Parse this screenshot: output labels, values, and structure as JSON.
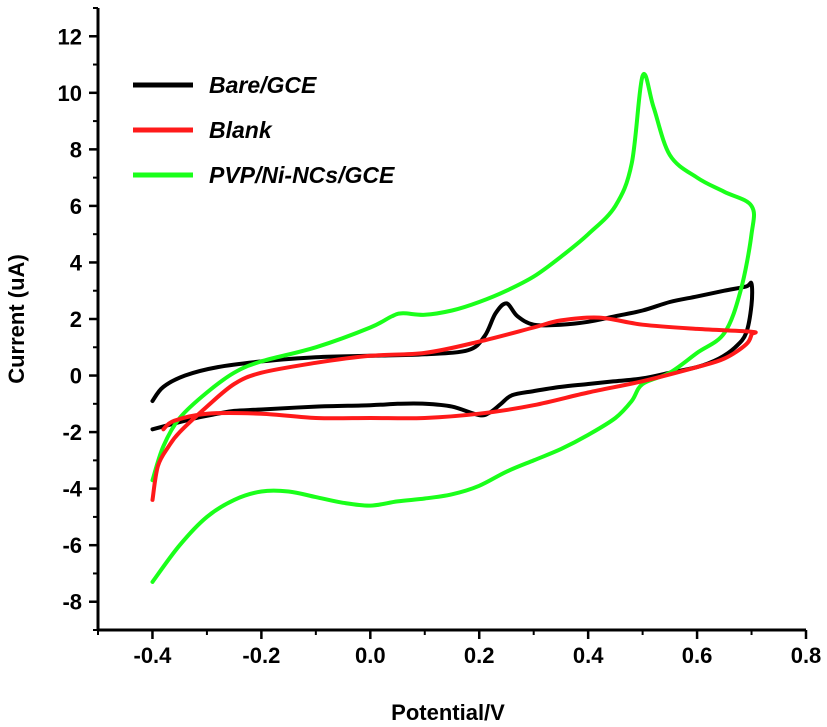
{
  "chart_data": {
    "type": "line",
    "title": "",
    "xlabel": "Potential/V",
    "ylabel": "Current (uA)",
    "xlim": [
      -0.5,
      0.8
    ],
    "ylim": [
      -9,
      13
    ],
    "xticks": [
      -0.4,
      -0.2,
      0.0,
      0.2,
      0.4,
      0.6,
      0.8
    ],
    "xtick_labels": [
      "-0.4",
      "-0.2",
      "0.0",
      "0.2",
      "0.4",
      "0.6",
      "0.8"
    ],
    "yticks": [
      -8,
      -6,
      -4,
      -2,
      0,
      2,
      4,
      6,
      8,
      10,
      12
    ],
    "ytick_labels": [
      "-8",
      "-6",
      "-4",
      "-2",
      "0",
      "2",
      "4",
      "6",
      "8",
      "10",
      "12"
    ],
    "grid": false,
    "legend_position": "top-left",
    "series": [
      {
        "name": "Bare/GCE",
        "color": "#000000",
        "x": [
          -0.4,
          -0.38,
          -0.34,
          -0.28,
          -0.2,
          -0.1,
          0.0,
          0.1,
          0.18,
          0.21,
          0.23,
          0.25,
          0.27,
          0.3,
          0.35,
          0.4,
          0.45,
          0.5,
          0.55,
          0.6,
          0.65,
          0.69,
          0.7,
          0.7,
          0.69,
          0.67,
          0.64,
          0.6,
          0.55,
          0.5,
          0.45,
          0.4,
          0.35,
          0.3,
          0.26,
          0.24,
          0.22,
          0.2,
          0.15,
          0.1,
          0.05,
          0.0,
          -0.1,
          -0.2,
          -0.25,
          -0.28,
          -0.32,
          -0.36,
          -0.4
        ],
        "y": [
          -0.9,
          -0.4,
          0.0,
          0.3,
          0.5,
          0.65,
          0.7,
          0.75,
          0.9,
          1.4,
          2.2,
          2.55,
          2.1,
          1.8,
          1.8,
          1.9,
          2.1,
          2.3,
          2.6,
          2.8,
          3.0,
          3.15,
          3.25,
          2.5,
          1.5,
          1.0,
          0.6,
          0.3,
          0.1,
          -0.1,
          -0.2,
          -0.3,
          -0.4,
          -0.55,
          -0.7,
          -1.0,
          -1.3,
          -1.4,
          -1.1,
          -1.0,
          -1.0,
          -1.05,
          -1.1,
          -1.2,
          -1.25,
          -1.35,
          -1.5,
          -1.7,
          -1.9
        ]
      },
      {
        "name": "Blank",
        "color": "#ff1a1a",
        "x": [
          -0.4,
          -0.39,
          -0.37,
          -0.35,
          -0.3,
          -0.25,
          -0.2,
          -0.1,
          0.0,
          0.1,
          0.2,
          0.3,
          0.35,
          0.42,
          0.5,
          0.6,
          0.7,
          0.7,
          0.69,
          0.65,
          0.6,
          0.5,
          0.4,
          0.3,
          0.2,
          0.1,
          0.0,
          -0.1,
          -0.2,
          -0.3,
          -0.36,
          -0.38
        ],
        "y": [
          -4.4,
          -3.2,
          -2.5,
          -2.0,
          -1.1,
          -0.3,
          0.1,
          0.45,
          0.7,
          0.8,
          1.2,
          1.7,
          1.95,
          2.05,
          1.8,
          1.65,
          1.55,
          1.45,
          1.1,
          0.6,
          0.3,
          -0.2,
          -0.6,
          -1.05,
          -1.35,
          -1.5,
          -1.5,
          -1.5,
          -1.35,
          -1.35,
          -1.6,
          -1.9
        ]
      },
      {
        "name": "PVP/Ni-NCs/GCE",
        "color": "#1aff1a",
        "x": [
          -0.4,
          -0.38,
          -0.35,
          -0.3,
          -0.25,
          -0.2,
          -0.1,
          0.0,
          0.04,
          0.06,
          0.1,
          0.15,
          0.2,
          0.25,
          0.3,
          0.35,
          0.4,
          0.45,
          0.48,
          0.5,
          0.52,
          0.55,
          0.6,
          0.65,
          0.7,
          0.7,
          0.68,
          0.65,
          0.6,
          0.55,
          0.5,
          0.48,
          0.45,
          0.4,
          0.35,
          0.3,
          0.25,
          0.2,
          0.15,
          0.1,
          0.05,
          0.0,
          -0.05,
          -0.1,
          -0.15,
          -0.2,
          -0.25,
          -0.3,
          -0.35,
          -0.4
        ],
        "y": [
          -3.7,
          -2.5,
          -1.5,
          -0.6,
          0.1,
          0.5,
          1.0,
          1.7,
          2.1,
          2.2,
          2.15,
          2.3,
          2.6,
          3.0,
          3.5,
          4.2,
          5.0,
          6.0,
          7.5,
          10.6,
          9.5,
          7.8,
          7.0,
          6.5,
          6.0,
          5.0,
          3.0,
          1.5,
          0.8,
          0.1,
          -0.3,
          -0.9,
          -1.5,
          -2.1,
          -2.6,
          -3.0,
          -3.4,
          -3.9,
          -4.2,
          -4.35,
          -4.45,
          -4.6,
          -4.5,
          -4.3,
          -4.1,
          -4.1,
          -4.4,
          -5.0,
          -6.0,
          -7.3
        ]
      }
    ]
  }
}
